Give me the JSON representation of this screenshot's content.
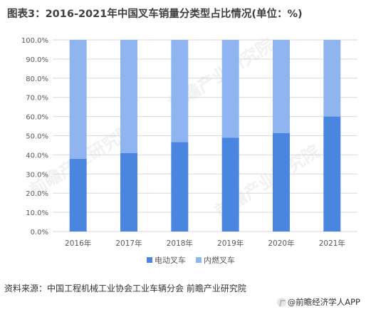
{
  "header": {
    "title": "图表3：2016-2021年中国叉车销量分类型占比情况(单位：%)"
  },
  "chart_data": {
    "type": "bar",
    "stacked": true,
    "categories": [
      "2016年",
      "2017年",
      "2018年",
      "2019年",
      "2020年",
      "2021年"
    ],
    "series": [
      {
        "name": "电动叉车",
        "color": "#4a86e0",
        "values": [
          37.9,
          40.9,
          46.7,
          49.0,
          51.3,
          60.0
        ]
      },
      {
        "name": "内燃叉车",
        "color": "#8fb4ef",
        "values": [
          62.1,
          59.1,
          53.3,
          51.0,
          48.7,
          40.0
        ]
      }
    ],
    "y_ticks": [
      "0.0%",
      "10.0%",
      "20.0%",
      "30.0%",
      "40.0%",
      "50.0%",
      "60.0%",
      "70.0%",
      "80.0%",
      "90.0%",
      "100.0%"
    ],
    "ylim": [
      0,
      100
    ],
    "grid": true,
    "legend": "bottom"
  },
  "footer": {
    "source": "资料来源：中国工程机械工业协会工业车辆分会 前瞻产业研究院",
    "app": "@前瞻经济学人APP"
  },
  "watermark": {
    "text": "前瞻产业研究院"
  }
}
